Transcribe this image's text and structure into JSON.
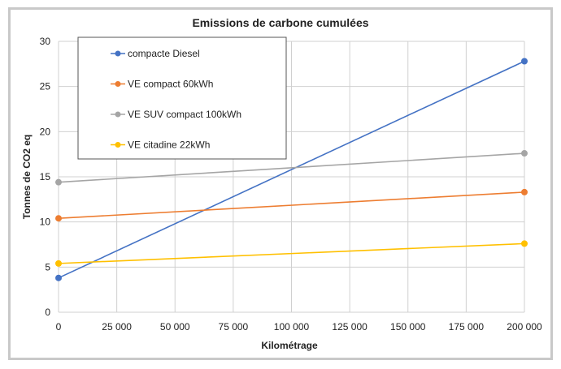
{
  "chart_data": {
    "type": "line",
    "title": "Emissions de carbone cumulées",
    "xlabel": "Kilométrage",
    "ylabel": "Tonnes de CO2 eq",
    "xlim": [
      0,
      200000
    ],
    "ylim": [
      0,
      30
    ],
    "xticks": [
      0,
      25000,
      50000,
      75000,
      100000,
      125000,
      150000,
      175000,
      200000
    ],
    "xtick_labels": [
      "0",
      "25 000",
      "50 000",
      "75 000",
      "100 000",
      "125 000",
      "150 000",
      "175 000",
      "200 000"
    ],
    "yticks": [
      0,
      5,
      10,
      15,
      20,
      25,
      30
    ],
    "ytick_labels": [
      "0",
      "5",
      "10",
      "15",
      "20",
      "25",
      "30"
    ],
    "grid": true,
    "legend_position": "top-left",
    "x": [
      0,
      200000
    ],
    "series": [
      {
        "name": "compacte Diesel",
        "values": [
          3.8,
          27.8
        ],
        "color": "#4472c4"
      },
      {
        "name": "VE compact  60kWh",
        "values": [
          10.4,
          13.3
        ],
        "color": "#ed7d31"
      },
      {
        "name": "VE SUV compact 100kWh",
        "values": [
          14.4,
          17.6
        ],
        "color": "#a5a5a5"
      },
      {
        "name": "VE citadine 22kWh",
        "values": [
          5.4,
          7.6
        ],
        "color": "#ffc000"
      }
    ]
  }
}
